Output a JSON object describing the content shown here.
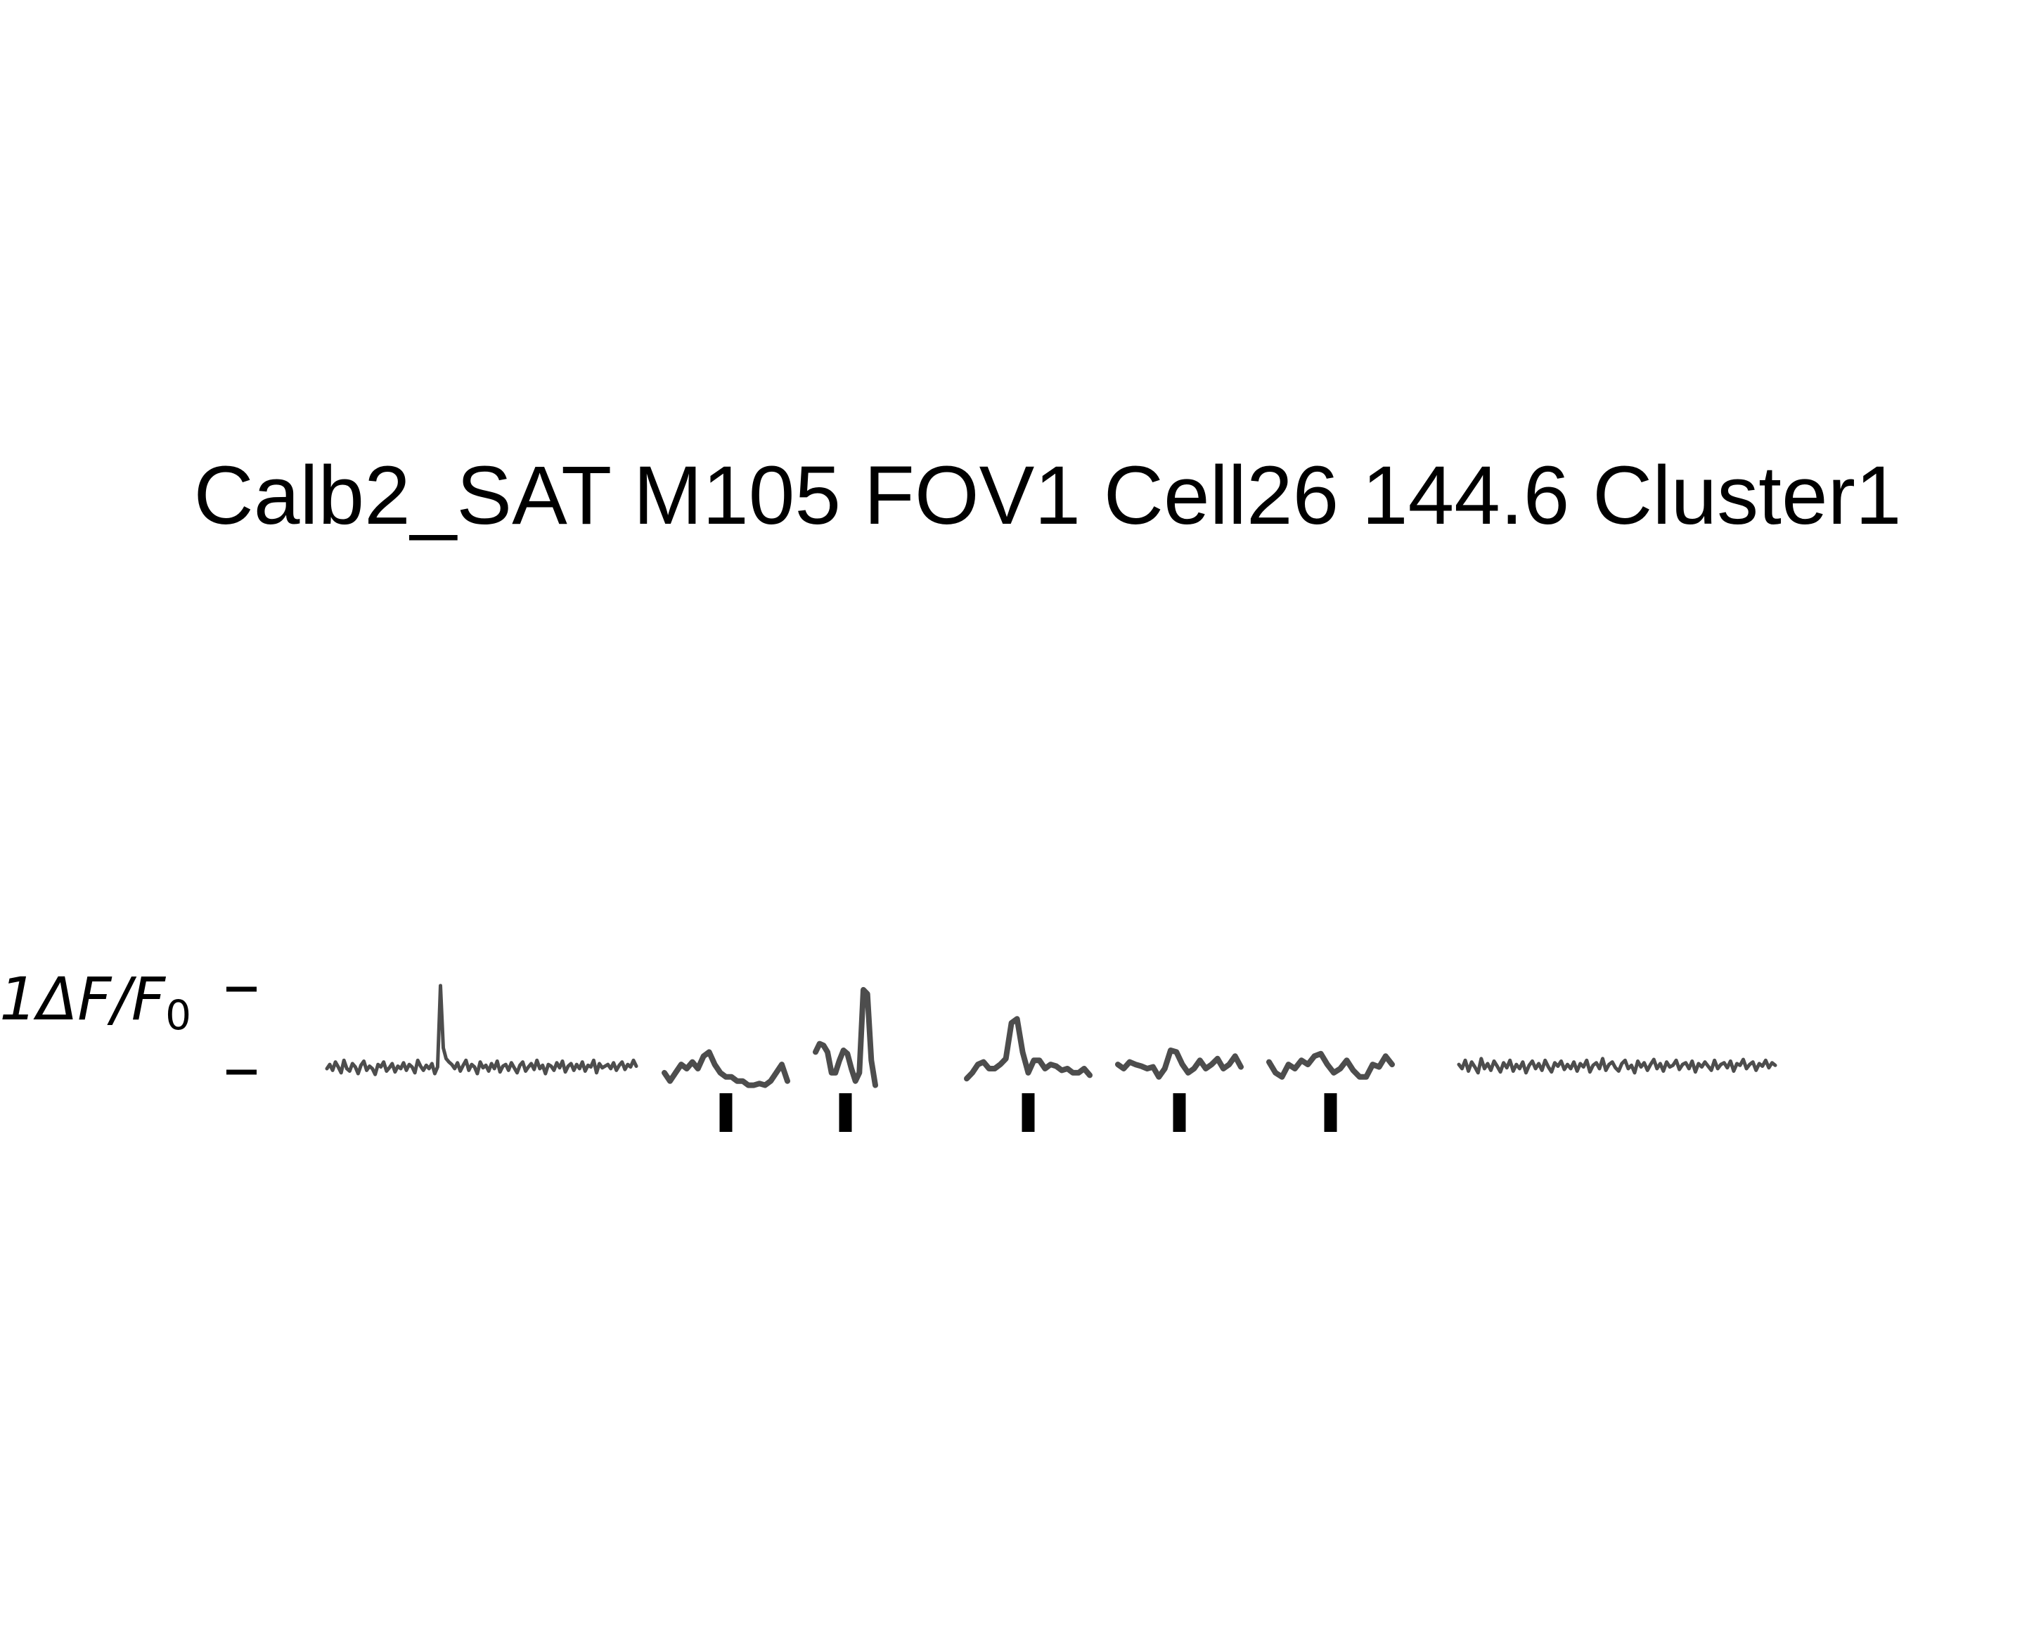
{
  "chart_data": {
    "type": "line",
    "title": "Calb2_SAT M105 FOV1 Cell26 144.6 Cluster1",
    "scale_bar_label": "1ΔF/F₀",
    "scale_bar_label_main": "1ΔF/F",
    "scale_bar_label_sub": "0",
    "colors": {
      "trace": "#4d4d4d",
      "stim_marker": "#000000",
      "scale_bar": "#000000"
    },
    "panels": [
      {
        "name": "baseline-pre",
        "kind": "noisy",
        "stim": false,
        "y": [
          0.0,
          0.05,
          -0.02,
          0.08,
          0.02,
          -0.05,
          0.1,
          0.0,
          -0.03,
          0.06,
          0.02,
          -0.06,
          0.04,
          0.09,
          -0.02,
          0.03,
          0.0,
          -0.07,
          0.05,
          0.02,
          0.08,
          -0.03,
          0.01,
          0.06,
          -0.04,
          0.03,
          0.0,
          0.07,
          -0.02,
          0.05,
          0.02,
          -0.05,
          0.1,
          0.03,
          -0.02,
          0.04,
          0.0,
          0.06,
          -0.06,
          0.02,
          1.0,
          0.25,
          0.12,
          0.08,
          0.05,
          0.0,
          0.07,
          -0.03,
          0.04,
          0.1,
          -0.02,
          0.05,
          0.02,
          -0.06,
          0.08,
          0.01,
          0.04,
          -0.03,
          0.06,
          0.0,
          0.09,
          -0.04,
          0.03,
          0.05,
          -0.02,
          0.07,
          0.01,
          -0.05,
          0.04,
          0.08,
          -0.03,
          0.02,
          0.06,
          -0.01,
          0.1,
          0.0,
          0.04,
          -0.06,
          0.05,
          0.03,
          -0.02,
          0.07,
          0.01,
          0.09,
          -0.04,
          0.03,
          0.06,
          -0.02,
          0.05,
          0.0,
          0.08,
          -0.03,
          0.04,
          0.02,
          0.1,
          -0.05,
          0.06,
          0.01,
          0.03,
          0.05,
          0.0,
          0.07,
          -0.02,
          0.04,
          0.08,
          -0.01,
          0.05,
          0.02,
          0.1,
          0.03
        ]
      },
      {
        "name": "trial-1",
        "kind": "smooth",
        "stim": true,
        "y": [
          -0.05,
          -0.15,
          -0.05,
          0.05,
          0.0,
          0.08,
          0.0,
          0.15,
          0.2,
          0.05,
          -0.05,
          -0.1,
          -0.1,
          -0.15,
          -0.15,
          -0.2,
          -0.2,
          -0.18,
          -0.2,
          -0.15,
          -0.05,
          0.05,
          -0.15
        ]
      },
      {
        "name": "trial-2",
        "kind": "smooth",
        "stim": true,
        "y": [
          0.2,
          0.3,
          0.28,
          0.2,
          -0.05,
          -0.05,
          0.1,
          0.22,
          0.18,
          0.0,
          -0.15,
          -0.05,
          0.95,
          0.9,
          0.1,
          -0.2
        ]
      },
      {
        "name": "trial-3",
        "kind": "smooth",
        "stim": true,
        "y": [
          -0.12,
          -0.05,
          0.05,
          0.08,
          0.0,
          0.0,
          0.05,
          0.12,
          0.55,
          0.6,
          0.2,
          -0.05,
          0.1,
          0.1,
          0.0,
          0.05,
          0.03,
          -0.02,
          0.0,
          -0.05,
          -0.05,
          0.0,
          -0.08
        ]
      },
      {
        "name": "trial-4",
        "kind": "smooth",
        "stim": true,
        "y": [
          0.05,
          0.0,
          0.08,
          0.05,
          0.03,
          0.0,
          0.02,
          -0.1,
          0.0,
          0.22,
          0.2,
          0.05,
          -0.05,
          0.0,
          0.1,
          0.0,
          0.05,
          0.12,
          0.0,
          0.05,
          0.15,
          0.02
        ]
      },
      {
        "name": "trial-5",
        "kind": "smooth",
        "stim": true,
        "y": [
          0.08,
          -0.05,
          -0.1,
          0.05,
          0.0,
          0.1,
          0.05,
          0.15,
          0.18,
          0.05,
          -0.05,
          0.0,
          0.1,
          -0.02,
          -0.1,
          -0.1,
          0.05,
          0.02,
          0.15,
          0.05
        ]
      },
      {
        "name": "baseline-post",
        "kind": "noisy",
        "stim": false,
        "y": [
          0.05,
          0.0,
          0.1,
          -0.03,
          0.08,
          0.02,
          -0.05,
          0.12,
          0.0,
          0.06,
          -0.02,
          0.09,
          0.03,
          -0.04,
          0.07,
          0.01,
          0.1,
          -0.03,
          0.05,
          0.0,
          0.08,
          -0.05,
          0.04,
          0.09,
          0.0,
          0.06,
          -0.02,
          0.1,
          0.02,
          -0.04,
          0.07,
          0.03,
          0.09,
          -0.01,
          0.05,
          0.0,
          0.08,
          -0.03,
          0.06,
          0.02,
          0.1,
          -0.04,
          0.04,
          0.07,
          0.0,
          0.12,
          -0.02,
          0.05,
          0.08,
          0.01,
          -0.03,
          0.06,
          0.1,
          0.0,
          0.04,
          -0.05,
          0.09,
          0.02,
          0.07,
          -0.02,
          0.05,
          0.11,
          0.0,
          0.06,
          -0.03,
          0.08,
          0.02,
          0.04,
          0.1,
          -0.01,
          0.05,
          0.07,
          0.0,
          0.09,
          -0.04,
          0.06,
          0.02,
          0.08,
          0.03,
          -0.02,
          0.1,
          0.0,
          0.05,
          0.07,
          0.01,
          0.09,
          -0.03,
          0.06,
          0.04,
          0.11,
          0.0,
          0.05,
          0.08,
          -0.02,
          0.06,
          0.03,
          0.1,
          0.01,
          0.07,
          0.04
        ]
      }
    ]
  }
}
